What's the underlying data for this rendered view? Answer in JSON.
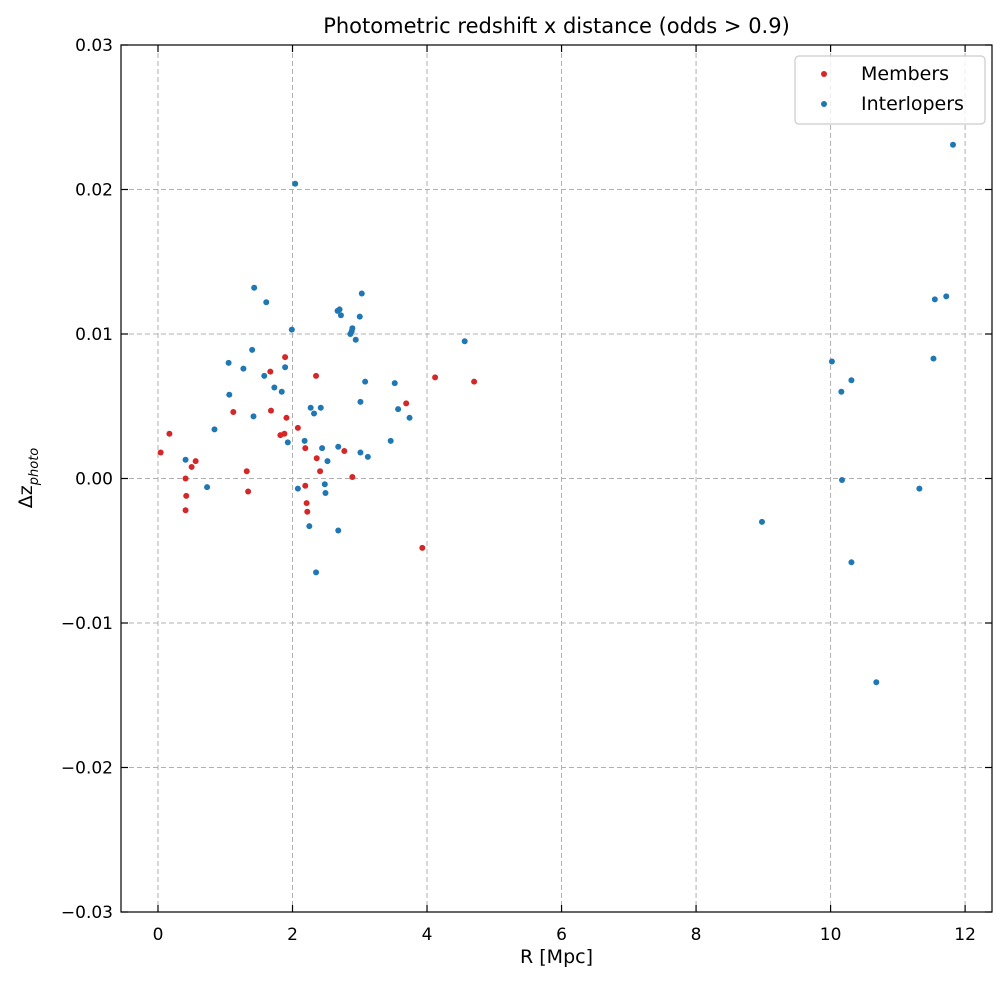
{
  "chart_data": {
    "type": "scatter",
    "title": "Photometric redshift x distance (odds > 0.9)",
    "xlabel": "R [Mpc]",
    "ylabel_main": "Δz",
    "ylabel_sub": "photo",
    "xlim": [
      -0.55,
      12.4
    ],
    "ylim": [
      -0.03,
      0.03
    ],
    "xticks": [
      0,
      2,
      4,
      6,
      8,
      10,
      12
    ],
    "xtick_labels": [
      "0",
      "2",
      "4",
      "6",
      "8",
      "10",
      "12"
    ],
    "yticks": [
      -0.03,
      -0.02,
      -0.01,
      0.0,
      0.01,
      0.02,
      0.03
    ],
    "ytick_labels": [
      "−0.03",
      "−0.02",
      "−0.01",
      "0.00",
      "0.01",
      "0.02",
      "0.03"
    ],
    "grid": true,
    "legend_position": "top-right",
    "series": [
      {
        "name": "Members",
        "color": "#d62728",
        "points": [
          [
            0.04,
            0.0018
          ],
          [
            0.17,
            0.0031
          ],
          [
            0.41,
            0.0
          ],
          [
            0.42,
            -0.0012
          ],
          [
            0.41,
            -0.0022
          ],
          [
            0.5,
            0.0008
          ],
          [
            0.56,
            0.0012
          ],
          [
            1.12,
            0.0046
          ],
          [
            1.32,
            0.0005
          ],
          [
            1.34,
            -0.0009
          ],
          [
            1.67,
            0.0074
          ],
          [
            1.68,
            0.0047
          ],
          [
            1.82,
            0.003
          ],
          [
            1.88,
            0.0031
          ],
          [
            1.89,
            0.0084
          ],
          [
            1.91,
            0.0042
          ],
          [
            2.08,
            0.0035
          ],
          [
            2.19,
            0.0021
          ],
          [
            2.19,
            -0.0005
          ],
          [
            2.21,
            -0.0017
          ],
          [
            2.22,
            -0.0023
          ],
          [
            2.35,
            0.0071
          ],
          [
            2.36,
            0.0014
          ],
          [
            2.41,
            0.0005
          ],
          [
            2.77,
            0.0019
          ],
          [
            2.89,
            0.0001
          ],
          [
            3.69,
            0.0052
          ],
          [
            3.93,
            -0.0048
          ],
          [
            4.12,
            0.007
          ],
          [
            4.7,
            0.0067
          ]
        ]
      },
      {
        "name": "Interlopers",
        "color": "#1f77b4",
        "points": [
          [
            0.41,
            0.0013
          ],
          [
            0.73,
            -0.0006
          ],
          [
            0.84,
            0.0034
          ],
          [
            1.05,
            0.008
          ],
          [
            1.06,
            0.0058
          ],
          [
            1.27,
            0.0076
          ],
          [
            1.4,
            0.0089
          ],
          [
            1.42,
            0.0043
          ],
          [
            1.43,
            0.0132
          ],
          [
            1.58,
            0.0071
          ],
          [
            1.61,
            0.0122
          ],
          [
            1.73,
            0.0063
          ],
          [
            1.84,
            0.006
          ],
          [
            1.89,
            0.0077
          ],
          [
            1.93,
            0.0025
          ],
          [
            1.99,
            0.0103
          ],
          [
            2.04,
            0.0204
          ],
          [
            2.08,
            -0.0007
          ],
          [
            2.18,
            0.0026
          ],
          [
            2.27,
            0.0049
          ],
          [
            2.25,
            -0.0033
          ],
          [
            2.32,
            0.0045
          ],
          [
            2.35,
            -0.0065
          ],
          [
            2.42,
            0.0049
          ],
          [
            2.44,
            0.0021
          ],
          [
            2.48,
            -0.0004
          ],
          [
            2.49,
            -0.001
          ],
          [
            2.52,
            0.0012
          ],
          [
            2.67,
            0.0116
          ],
          [
            2.7,
            0.0117
          ],
          [
            2.72,
            0.0113
          ],
          [
            2.68,
            0.0022
          ],
          [
            2.68,
            -0.0036
          ],
          [
            2.86,
            0.01
          ],
          [
            2.88,
            0.0102
          ],
          [
            2.89,
            0.0104
          ],
          [
            2.94,
            0.0096
          ],
          [
            3.0,
            0.0112
          ],
          [
            3.01,
            0.0053
          ],
          [
            3.01,
            0.0018
          ],
          [
            3.03,
            0.0128
          ],
          [
            3.08,
            0.0067
          ],
          [
            3.12,
            0.0015
          ],
          [
            3.46,
            0.0026
          ],
          [
            3.52,
            0.0066
          ],
          [
            3.57,
            0.0048
          ],
          [
            3.74,
            0.0042
          ],
          [
            4.56,
            0.0095
          ],
          [
            8.98,
            -0.003
          ],
          [
            10.02,
            0.0081
          ],
          [
            10.16,
            0.006
          ],
          [
            10.17,
            -0.0001
          ],
          [
            10.31,
            0.0068
          ],
          [
            10.31,
            -0.0058
          ],
          [
            10.68,
            -0.0141
          ],
          [
            11.32,
            -0.0007
          ],
          [
            11.53,
            0.0083
          ],
          [
            11.55,
            0.0124
          ],
          [
            11.72,
            0.0126
          ],
          [
            11.82,
            0.0231
          ]
        ]
      }
    ]
  }
}
